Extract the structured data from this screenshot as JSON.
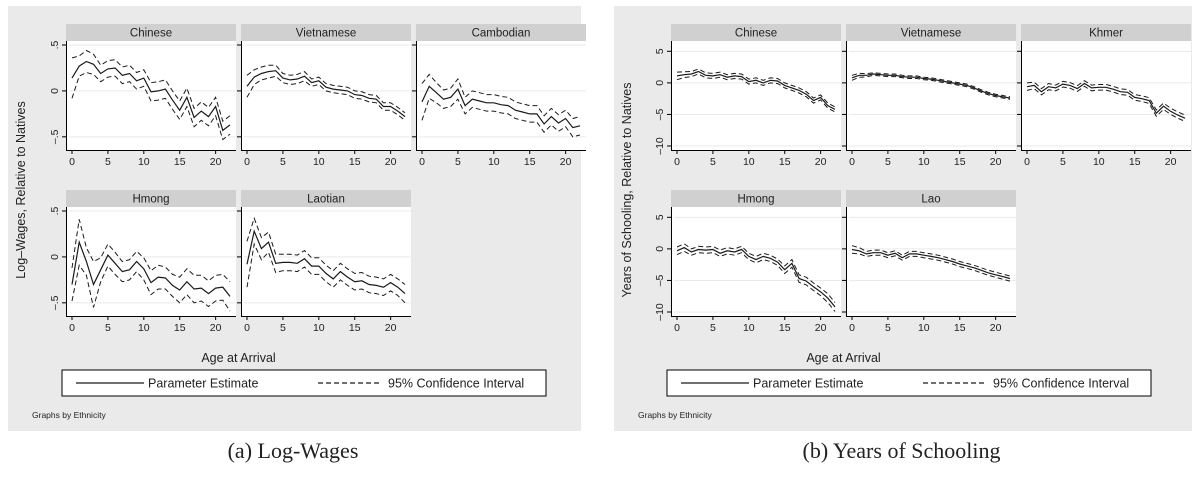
{
  "captions": {
    "a": "(a) Log-Wages",
    "b": "(b) Years of Schooling"
  },
  "colors": {
    "panel_bg": "#EAEAEA",
    "strip_bg": "#D0D0D0",
    "plot_bg": "#FFFFFF",
    "line": "#1A1A1A",
    "grid": "#EAEAEA"
  },
  "chart_data": [
    {
      "type": "line",
      "figure": "a",
      "ylabel": "Log–Wages, Relative to Natives",
      "xlabel": "Age at Arrival",
      "note": "Graphs by Ethnicity",
      "xlim": [
        0,
        22
      ],
      "xticks": [
        "0",
        "5",
        "10",
        "15",
        "20"
      ],
      "ylim": [
        -0.6,
        0.5
      ],
      "yticks": [
        ".5",
        "0",
        "–.5"
      ],
      "ytick_values": [
        0.5,
        0,
        -0.5
      ],
      "legend": {
        "position": "bottom",
        "entries": [
          "Parameter Estimate",
          "95% Confidence Interval"
        ]
      },
      "series_style": {
        "estimate": "solid",
        "ci": "dashed"
      },
      "panels": [
        {
          "title": "Chinese",
          "estimate": [
            0.14,
            0.27,
            0.32,
            0.29,
            0.19,
            0.24,
            0.25,
            0.17,
            0.19,
            0.11,
            0.14,
            -0.01,
            0.0,
            0.02,
            -0.1,
            -0.21,
            -0.07,
            -0.29,
            -0.22,
            -0.28,
            -0.17,
            -0.43,
            -0.37
          ],
          "ci_half": [
            0.22,
            0.11,
            0.12,
            0.11,
            0.09,
            0.09,
            0.09,
            0.09,
            0.09,
            0.09,
            0.09,
            0.1,
            0.1,
            0.1,
            0.1,
            0.1,
            0.1,
            0.1,
            0.1,
            0.1,
            0.1,
            0.1,
            0.1
          ]
        },
        {
          "title": "Vietnamese",
          "estimate": [
            0.05,
            0.15,
            0.19,
            0.21,
            0.22,
            0.14,
            0.12,
            0.13,
            0.16,
            0.09,
            0.11,
            0.04,
            0.02,
            0.01,
            0.0,
            -0.04,
            -0.05,
            -0.08,
            -0.09,
            -0.17,
            -0.17,
            -0.22,
            -0.28
          ],
          "ci_half": [
            0.12,
            0.08,
            0.07,
            0.07,
            0.06,
            0.05,
            0.05,
            0.05,
            0.05,
            0.04,
            0.04,
            0.04,
            0.04,
            0.04,
            0.04,
            0.04,
            0.04,
            0.04,
            0.04,
            0.04,
            0.04,
            0.04,
            0.04
          ]
        },
        {
          "title": "Cambodian",
          "estimate": [
            -0.12,
            0.05,
            -0.02,
            -0.09,
            -0.07,
            0.02,
            -0.16,
            -0.09,
            -0.11,
            -0.13,
            -0.13,
            -0.15,
            -0.16,
            -0.21,
            -0.23,
            -0.25,
            -0.25,
            -0.36,
            -0.28,
            -0.35,
            -0.3,
            -0.4,
            -0.38
          ],
          "ci_half": [
            0.2,
            0.13,
            0.11,
            0.1,
            0.1,
            0.11,
            0.09,
            0.09,
            0.09,
            0.09,
            0.09,
            0.09,
            0.09,
            0.09,
            0.09,
            0.09,
            0.09,
            0.09,
            0.09,
            0.09,
            0.09,
            0.1,
            0.1
          ]
        },
        {
          "title": "Hmong",
          "estimate": [
            -0.3,
            0.16,
            -0.05,
            -0.3,
            -0.14,
            0.02,
            -0.07,
            -0.16,
            -0.14,
            -0.05,
            -0.13,
            -0.28,
            -0.22,
            -0.23,
            -0.31,
            -0.36,
            -0.27,
            -0.35,
            -0.34,
            -0.4,
            -0.34,
            -0.33,
            -0.43
          ],
          "ci_half": [
            0.18,
            0.25,
            0.15,
            0.25,
            0.13,
            0.12,
            0.12,
            0.11,
            0.11,
            0.11,
            0.12,
            0.13,
            0.13,
            0.12,
            0.12,
            0.14,
            0.14,
            0.15,
            0.14,
            0.14,
            0.14,
            0.14,
            0.16
          ]
        },
        {
          "title": "Laotian",
          "estimate": [
            -0.08,
            0.28,
            0.09,
            0.16,
            -0.07,
            -0.06,
            -0.06,
            -0.07,
            -0.02,
            -0.1,
            -0.1,
            -0.18,
            -0.24,
            -0.16,
            -0.22,
            -0.27,
            -0.26,
            -0.3,
            -0.31,
            -0.33,
            -0.28,
            -0.33,
            -0.4
          ],
          "ci_half": [
            0.25,
            0.14,
            0.12,
            0.11,
            0.1,
            0.09,
            0.09,
            0.09,
            0.09,
            0.09,
            0.09,
            0.09,
            0.09,
            0.09,
            0.09,
            0.09,
            0.09,
            0.09,
            0.09,
            0.09,
            0.09,
            0.09,
            0.1
          ]
        }
      ]
    },
    {
      "type": "line",
      "figure": "b",
      "ylabel": "Years of Schooling, Relative to Natives",
      "xlabel": "Age at Arrival",
      "note": "Graphs by Ethnicity",
      "xlim": [
        0,
        22
      ],
      "xticks": [
        "0",
        "5",
        "10",
        "15",
        "20"
      ],
      "ylim": [
        -10,
        6
      ],
      "yticks": [
        "5",
        "0",
        "–5",
        "–10"
      ],
      "ytick_values": [
        5,
        0,
        -5,
        -10
      ],
      "legend": {
        "position": "bottom",
        "entries": [
          "Parameter Estimate",
          "95% Confidence Interval"
        ]
      },
      "series_style": {
        "estimate": "solid",
        "ci": "dashed"
      },
      "panels": [
        {
          "title": "Chinese",
          "estimate": [
            1.1,
            1.3,
            1.4,
            1.8,
            1.2,
            1.1,
            1.3,
            0.9,
            1.1,
            1.0,
            0.2,
            0.4,
            0.0,
            0.4,
            0.3,
            -0.4,
            -0.8,
            -1.2,
            -1.8,
            -2.8,
            -2.3,
            -3.6,
            -4.2
          ],
          "ci_half": [
            0.6,
            0.45,
            0.4,
            0.4,
            0.4,
            0.4,
            0.4,
            0.4,
            0.4,
            0.4,
            0.4,
            0.4,
            0.4,
            0.4,
            0.4,
            0.4,
            0.4,
            0.4,
            0.4,
            0.4,
            0.4,
            0.4,
            0.4
          ]
        },
        {
          "title": "Vietnamese",
          "estimate": [
            0.8,
            1.2,
            1.2,
            1.4,
            1.3,
            1.2,
            1.2,
            1.0,
            0.9,
            0.9,
            0.7,
            0.6,
            0.4,
            0.2,
            0.0,
            -0.2,
            -0.4,
            -0.8,
            -1.3,
            -1.7,
            -2.0,
            -2.2,
            -2.4
          ],
          "ci_half": [
            0.4,
            0.3,
            0.25,
            0.2,
            0.2,
            0.2,
            0.2,
            0.2,
            0.2,
            0.2,
            0.2,
            0.2,
            0.2,
            0.2,
            0.2,
            0.2,
            0.2,
            0.2,
            0.2,
            0.2,
            0.2,
            0.2,
            0.2
          ]
        },
        {
          "title": "Khmer",
          "estimate": [
            -0.6,
            -0.4,
            -1.4,
            -0.6,
            -0.8,
            -0.2,
            -0.4,
            -0.9,
            -0.1,
            -0.8,
            -0.7,
            -0.7,
            -1.0,
            -1.4,
            -1.5,
            -2.3,
            -2.5,
            -2.8,
            -4.8,
            -3.7,
            -4.5,
            -5.1,
            -5.6
          ],
          "ci_half": [
            0.6,
            0.5,
            0.5,
            0.5,
            0.45,
            0.45,
            0.45,
            0.45,
            0.45,
            0.45,
            0.45,
            0.45,
            0.45,
            0.45,
            0.45,
            0.45,
            0.45,
            0.45,
            0.5,
            0.5,
            0.5,
            0.5,
            0.5
          ]
        },
        {
          "title": "Hmong",
          "estimate": [
            -0.3,
            0.2,
            -0.5,
            -0.1,
            -0.2,
            -0.1,
            -0.7,
            -0.3,
            -0.5,
            -0.1,
            -1.2,
            -1.7,
            -1.2,
            -1.5,
            -2.1,
            -3.3,
            -2.3,
            -4.7,
            -5.1,
            -6.0,
            -6.8,
            -7.8,
            -9.2
          ],
          "ci_half": [
            0.6,
            0.6,
            0.5,
            0.5,
            0.5,
            0.5,
            0.5,
            0.5,
            0.5,
            0.5,
            0.5,
            0.5,
            0.5,
            0.5,
            0.5,
            0.6,
            0.6,
            0.6,
            0.6,
            0.6,
            0.6,
            0.7,
            0.7
          ]
        },
        {
          "title": "Lao",
          "estimate": [
            -0.1,
            -0.3,
            -0.8,
            -0.6,
            -0.6,
            -1.0,
            -0.7,
            -1.4,
            -0.8,
            -0.8,
            -1.0,
            -1.2,
            -1.4,
            -1.7,
            -2.0,
            -2.4,
            -2.7,
            -3.0,
            -3.4,
            -3.8,
            -4.1,
            -4.4,
            -4.7
          ],
          "ci_half": [
            0.6,
            0.5,
            0.4,
            0.4,
            0.4,
            0.4,
            0.4,
            0.4,
            0.4,
            0.4,
            0.4,
            0.4,
            0.4,
            0.4,
            0.4,
            0.4,
            0.4,
            0.4,
            0.4,
            0.4,
            0.4,
            0.4,
            0.4
          ]
        }
      ]
    }
  ]
}
